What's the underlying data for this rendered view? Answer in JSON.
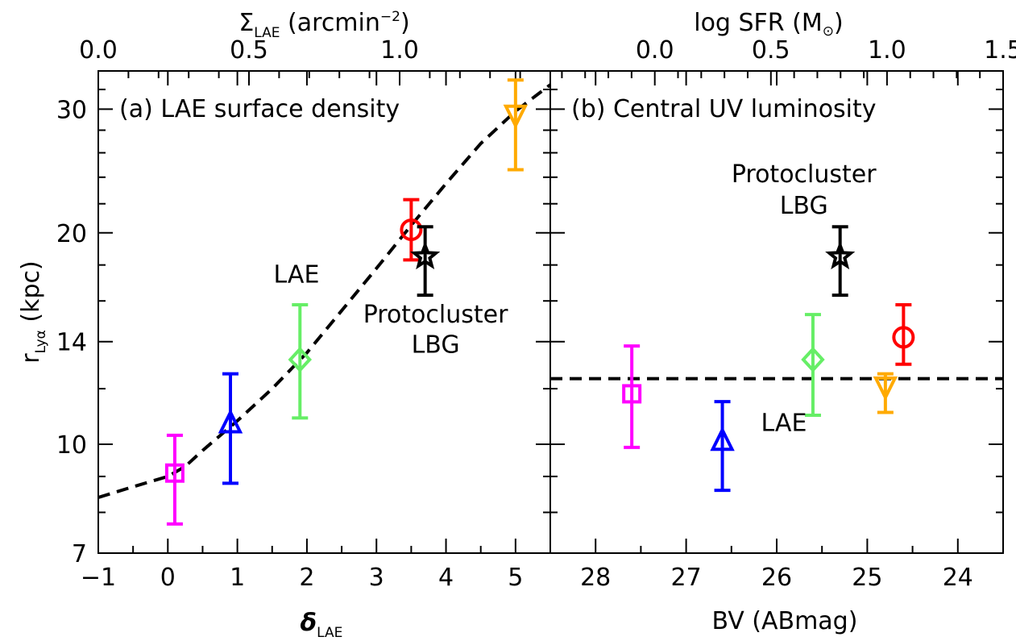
{
  "chart_data": [
    {
      "id": "a",
      "type": "scatter",
      "title": "(a) LAE surface density",
      "xlabel": {
        "symbol": "δ",
        "subscript": "LAE"
      },
      "x2label": {
        "symbol": "Σ",
        "subscript": "LAE",
        "unit_prefix": "(arcmin",
        "unit_exp": "−2",
        "unit_suffix": ")"
      },
      "ylabel": {
        "symbol": "r",
        "subscript": "Lyα",
        "unit": "(kpc)"
      },
      "xlim": [
        -1,
        5.5
      ],
      "ylim": [
        7,
        34
      ],
      "yscale": "log",
      "xticks": [
        -1,
        0,
        1,
        2,
        3,
        4,
        5
      ],
      "xtick_labels": [
        "−1",
        "0",
        "1",
        "2",
        "3",
        "4",
        "5"
      ],
      "x2lim": [
        0.0,
        1.5
      ],
      "x2ticks": [
        0.0,
        0.5,
        1.0
      ],
      "x2tick_labels": [
        "0.0",
        "0.5",
        "1.0"
      ],
      "yticks": [
        7,
        10,
        14,
        20,
        30
      ],
      "ytick_labels": [
        "7",
        "10",
        "14",
        "20",
        "30"
      ],
      "points": [
        {
          "x": 0.1,
          "y": 9.1,
          "yerr_low": 7.7,
          "yerr_high": 10.3,
          "marker": "square",
          "color": "#ff00ff"
        },
        {
          "x": 0.9,
          "y": 10.7,
          "yerr_low": 8.8,
          "yerr_high": 12.6,
          "marker": "triangle-up",
          "color": "#0000ff"
        },
        {
          "x": 1.9,
          "y": 13.2,
          "yerr_low": 10.9,
          "yerr_high": 15.8,
          "marker": "diamond",
          "color": "#66ee66"
        },
        {
          "x": 3.5,
          "y": 20.2,
          "yerr_low": 18.3,
          "yerr_high": 22.3,
          "marker": "circle",
          "color": "#ff0000"
        },
        {
          "x": 3.7,
          "y": 18.5,
          "yerr_low": 16.3,
          "yerr_high": 20.4,
          "marker": "star",
          "color": "#000000"
        },
        {
          "x": 5.0,
          "y": 29.5,
          "yerr_low": 24.6,
          "yerr_high": 33.0,
          "marker": "triangle-down",
          "color": "#ffaa00"
        }
      ],
      "fit_line": {
        "style": "dashed",
        "color": "#000000",
        "x": [
          -1,
          -0.5,
          0,
          0.25,
          0.5,
          1,
          1.5,
          2,
          2.5,
          3,
          3.5,
          4,
          4.5,
          5,
          5.5
        ],
        "y": [
          8.4,
          8.7,
          9.0,
          9.3,
          9.8,
          10.8,
          12.0,
          13.5,
          15.5,
          17.8,
          20.5,
          23.5,
          26.8,
          29.8,
          32.5
        ]
      },
      "annotations": [
        {
          "text": "LAE",
          "x": 1.85,
          "y": 17.0
        },
        {
          "text": "Protocluster",
          "x": 3.85,
          "y": 14.9
        },
        {
          "text": "LBG",
          "x": 3.85,
          "y": 13.5
        }
      ]
    },
    {
      "id": "b",
      "type": "scatter",
      "title": "(b) Central UV luminosity",
      "xlabel": {
        "text": "BV (ABmag)"
      },
      "x2label": {
        "text": "log SFR (M",
        "sun": "⊙",
        "suffix": ")"
      },
      "xlim": [
        28.5,
        23.5
      ],
      "ylim": [
        7,
        34
      ],
      "yscale": "log",
      "xticks": [
        28,
        27,
        26,
        25,
        24
      ],
      "xtick_labels": [
        "28",
        "27",
        "26",
        "25",
        "24"
      ],
      "x2lim": [
        -0.45,
        1.5
      ],
      "x2ticks": [
        0.0,
        0.5,
        1.0,
        1.5
      ],
      "x2tick_labels": [
        "0.0",
        "0.5",
        "1.0",
        "1.5"
      ],
      "points": [
        {
          "x": 27.6,
          "y": 11.8,
          "yerr_low": 9.9,
          "yerr_high": 13.8,
          "marker": "square",
          "color": "#ff00ff"
        },
        {
          "x": 26.6,
          "y": 10.1,
          "yerr_low": 8.6,
          "yerr_high": 11.5,
          "marker": "triangle-up",
          "color": "#0000ff"
        },
        {
          "x": 25.6,
          "y": 13.2,
          "yerr_low": 11.0,
          "yerr_high": 15.3,
          "marker": "diamond",
          "color": "#66ee66"
        },
        {
          "x": 24.6,
          "y": 14.2,
          "yerr_low": 13.0,
          "yerr_high": 15.8,
          "marker": "circle",
          "color": "#ff0000"
        },
        {
          "x": 24.8,
          "y": 12.1,
          "yerr_low": 11.1,
          "yerr_high": 12.6,
          "marker": "triangle-down",
          "color": "#ffaa00"
        },
        {
          "x": 25.3,
          "y": 18.5,
          "yerr_low": 16.3,
          "yerr_high": 20.4,
          "marker": "star",
          "color": "#000000"
        }
      ],
      "mean_line": {
        "style": "dashed",
        "color": "#000000",
        "y": 12.4
      },
      "annotations": [
        {
          "text": "Protocluster",
          "x": 25.7,
          "y": 23.6
        },
        {
          "text": "LBG",
          "x": 25.7,
          "y": 21.3
        },
        {
          "text": "LAE",
          "x": 25.92,
          "y": 10.45
        }
      ]
    }
  ]
}
